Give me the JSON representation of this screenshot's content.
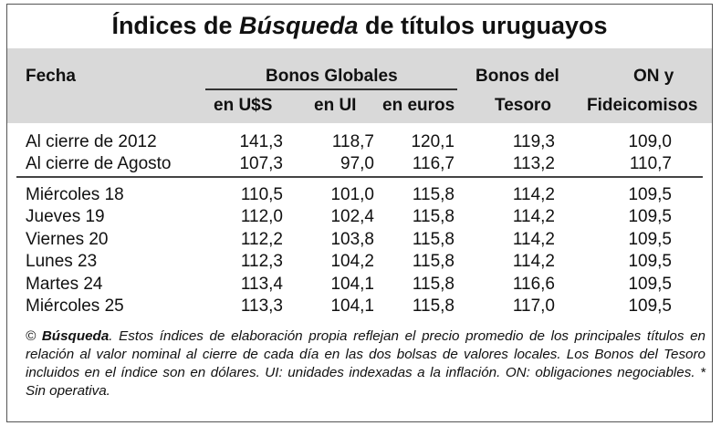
{
  "title": {
    "pre": "Índices de ",
    "brand": "Búsqueda",
    "post": " de títulos uruguayos"
  },
  "header": {
    "fecha": "Fecha",
    "bonos_globales": "Bonos Globales",
    "en_usd": "en U$S",
    "en_ui": "en UI",
    "en_euros": "en euros",
    "tesoro_1": "Bonos del",
    "tesoro_2": "Tesoro",
    "on_1": "ON y",
    "on_2": "Fideicomisos"
  },
  "rows_top": [
    {
      "label": "Al cierre de 2012",
      "usd": "141,3",
      "ui": "118,7",
      "eur": "120,1",
      "tes": "119,3",
      "on": "109,0"
    },
    {
      "label": "Al cierre de Agosto",
      "usd": "107,3",
      "ui": "97,0",
      "eur": "116,7",
      "tes": "113,2",
      "on": "110,7"
    }
  ],
  "rows_bottom": [
    {
      "label": "Miércoles 18",
      "usd": "110,5",
      "ui": "101,0",
      "eur": "115,8",
      "tes": "114,2",
      "on": "109,5"
    },
    {
      "label": "Jueves 19",
      "usd": "112,0",
      "ui": "102,4",
      "eur": "115,8",
      "tes": "114,2",
      "on": "109,5"
    },
    {
      "label": "Viernes 20",
      "usd": "112,2",
      "ui": "103,8",
      "eur": "115,8",
      "tes": "114,2",
      "on": "109,5"
    },
    {
      "label": "Lunes 23",
      "usd": "112,3",
      "ui": "104,2",
      "eur": "115,8",
      "tes": "114,2",
      "on": "109,5"
    },
    {
      "label": "Martes 24",
      "usd": "113,4",
      "ui": "104,1",
      "eur": "115,8",
      "tes": "116,6",
      "on": "109,5"
    },
    {
      "label": "Miércoles 25",
      "usd": "113,3",
      "ui": "104,1",
      "eur": "115,8",
      "tes": "117,0",
      "on": "109,5"
    }
  ],
  "note": {
    "prefix": "© ",
    "brand": "Búsqueda",
    "text": ". Estos índices de elaboración propia reflejan el precio promedio de los principales títulos en relación al valor nominal al cierre de cada día en las dos bolsas de valores locales. Los Bonos del Tesoro incluidos en el índice son en dólares. UI: unidades indexadas a la inflación. ON: obligaciones negociables. * Sin operativa."
  }
}
